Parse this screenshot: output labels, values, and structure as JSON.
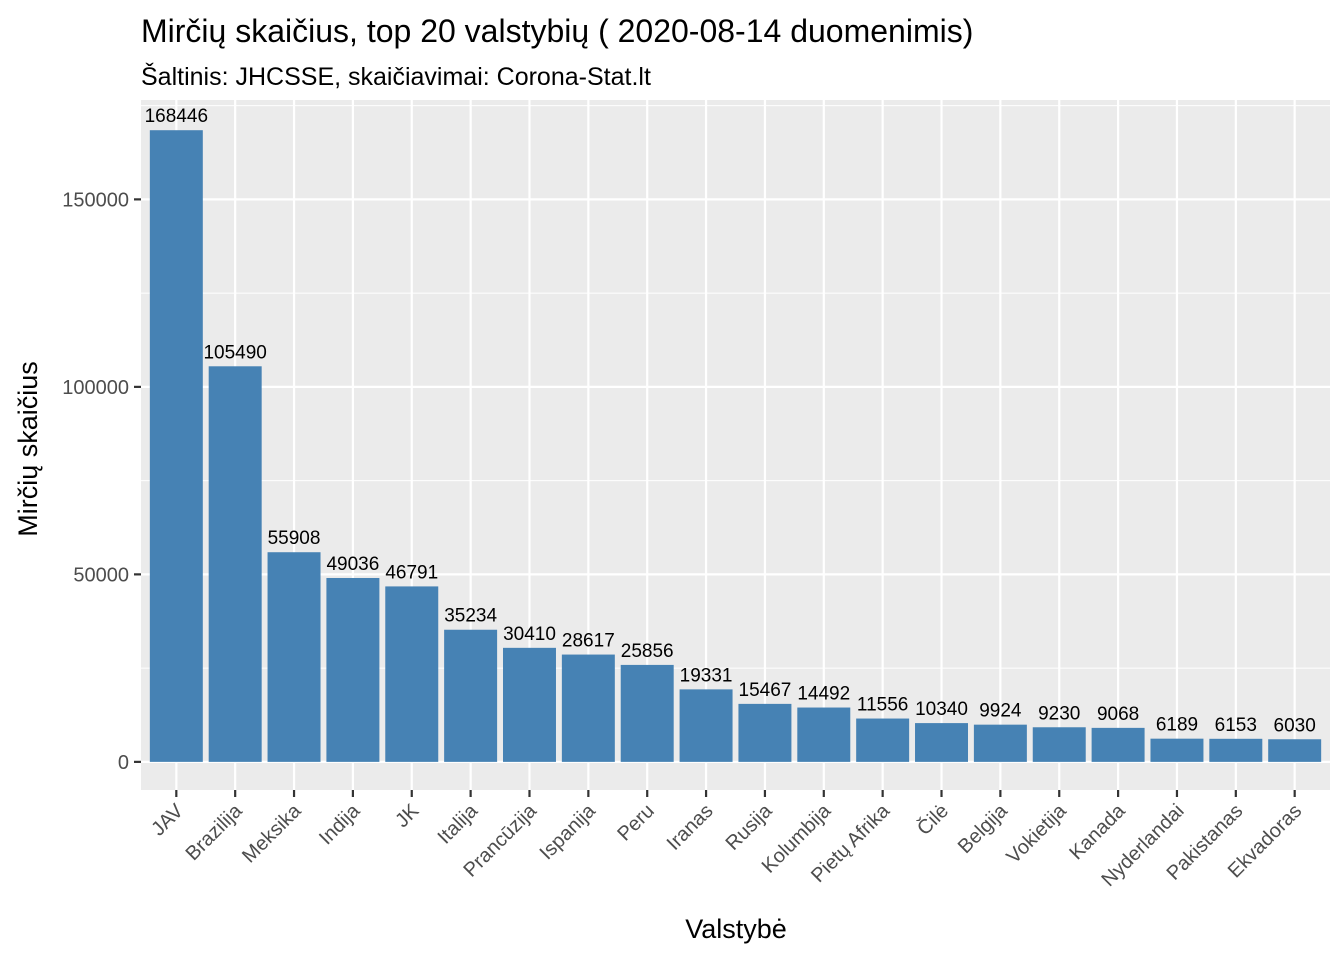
{
  "chart_data": {
    "type": "bar",
    "title": "Mirčių skaičius, top 20 valstybių ( 2020-08-14 duomenimis)",
    "subtitle": "Šaltinis: JHCSSE, skaičiavimai: Corona-Stat.lt",
    "xlabel": "Valstybė",
    "ylabel": "Mirčių skaičius",
    "ylim": [
      -7500,
      176500
    ],
    "yticks": [
      0,
      50000,
      100000,
      150000
    ],
    "ytick_labels": [
      "0",
      "50000",
      "100000",
      "150000"
    ],
    "grid": true,
    "legend": "none",
    "categories": [
      "JAV",
      "Brazilija",
      "Meksika",
      "Indija",
      "JK",
      "Italija",
      "Prancūzija",
      "Ispanija",
      "Peru",
      "Iranas",
      "Rusija",
      "Kolumbija",
      "Pietų Afrika",
      "Čilė",
      "Belgija",
      "Vokietija",
      "Kanada",
      "Nyderlandai",
      "Pakistanas",
      "Ekvadoras"
    ],
    "values": [
      168446,
      105490,
      55908,
      49036,
      46791,
      35234,
      30410,
      28617,
      25856,
      19331,
      15467,
      14492,
      11556,
      10340,
      9924,
      9230,
      9068,
      6189,
      6153,
      6030
    ],
    "bar_color": "#4682b4",
    "panel_background": "#ebebeb",
    "grid_color": "#ffffff"
  }
}
